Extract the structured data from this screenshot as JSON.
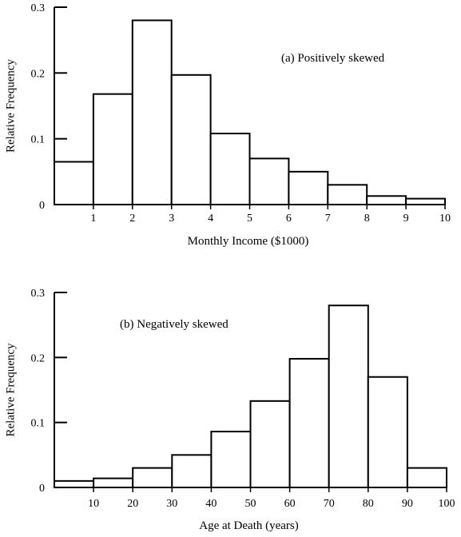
{
  "chart_data": [
    {
      "type": "bar",
      "annotation": "(a) Positively skewed",
      "xlabel": "Monthly Income ($1000)",
      "ylabel": "Relative Frequency",
      "bin_edges": [
        0,
        1,
        2,
        3,
        4,
        5,
        6,
        7,
        8,
        9,
        10
      ],
      "values": [
        0.065,
        0.168,
        0.28,
        0.197,
        0.108,
        0.07,
        0.05,
        0.03,
        0.013,
        0.009
      ],
      "x_ticks": [
        1,
        2,
        3,
        4,
        5,
        6,
        7,
        8,
        9,
        10
      ],
      "x_tick_labels": [
        "1",
        "2",
        "3",
        "4",
        "5",
        "6",
        "7",
        "8",
        "9",
        "10"
      ],
      "y_ticks": [
        0,
        0.1,
        0.2,
        0.3
      ],
      "y_tick_labels": [
        "0",
        "0.1",
        "0.2",
        "0.3"
      ],
      "xlim": [
        0,
        10
      ],
      "ylim": [
        0,
        0.3
      ],
      "grid": false
    },
    {
      "type": "bar",
      "annotation": "(b) Negatively skewed",
      "xlabel": "Age at Death (years)",
      "ylabel": "Relative Frequency",
      "bin_edges": [
        0,
        10,
        20,
        30,
        40,
        50,
        60,
        70,
        80,
        90,
        100
      ],
      "values": [
        0.01,
        0.014,
        0.03,
        0.05,
        0.086,
        0.133,
        0.198,
        0.28,
        0.17,
        0.03
      ],
      "x_ticks": [
        10,
        20,
        30,
        40,
        50,
        60,
        70,
        80,
        90,
        100
      ],
      "x_tick_labels": [
        "10",
        "20",
        "30",
        "40",
        "50",
        "60",
        "70",
        "80",
        "90",
        "100"
      ],
      "y_ticks": [
        0,
        0.1,
        0.2,
        0.3
      ],
      "y_tick_labels": [
        "0",
        "0.1",
        "0.2",
        "0.3"
      ],
      "xlim": [
        0,
        100
      ],
      "ylim": [
        0,
        0.3
      ],
      "grid": false
    }
  ]
}
